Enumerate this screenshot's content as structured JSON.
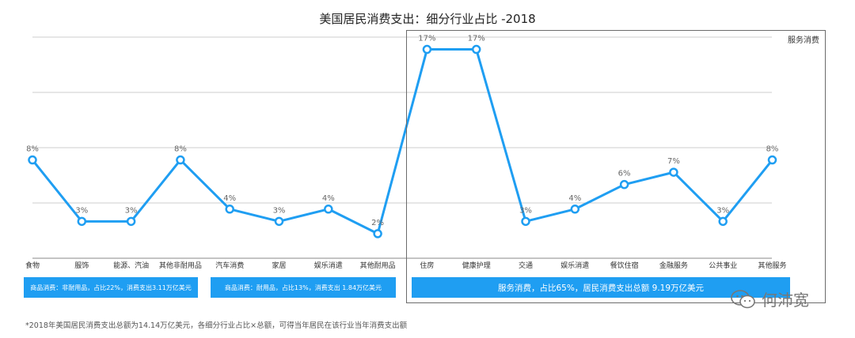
{
  "title": "美国居民消费支出：细分行业占比 -2018",
  "box_label": "服务消费",
  "bands": [
    {
      "label": "商品消费：非耐用品，占比22%，消费支出3.11万亿美元"
    },
    {
      "label": "商品消费：耐用品，占比13%，消费支出 1.84万亿美元"
    },
    {
      "label": "服务消费，占比65%，居民消费支出总额 9.19万亿美元"
    }
  ],
  "footnote": "*2018年美国居民消费支出总额为14.14万亿美元，各细分行业占比×总额，可得当年居民在该行业当年消费支出额",
  "watermark": {
    "text": "何沛宽",
    "icon": "wechat-icon"
  },
  "colors": {
    "line": "#1f9ef2",
    "band": "#1f9ef2",
    "grid": "#cccccc",
    "box": "#6b6b6b"
  },
  "chart_data": {
    "type": "line",
    "title": "美国居民消费支出：细分行业占比 -2018",
    "categories": [
      "食物",
      "服饰",
      "能源、汽油",
      "其他非耐用品",
      "汽车消费",
      "家居",
      "娱乐消遣",
      "其他耐用品",
      "住房",
      "健康护理",
      "交通",
      "娱乐消遣",
      "餐饮住宿",
      "金融服务",
      "公共事业",
      "其他服务"
    ],
    "values": [
      8,
      3,
      3,
      8,
      4,
      3,
      4,
      2,
      17,
      17,
      3,
      4,
      6,
      7,
      3,
      8
    ],
    "value_labels": [
      "8%",
      "3%",
      "3%",
      "8%",
      "4%",
      "3%",
      "4%",
      "2%",
      "17%",
      "17%",
      "3%",
      "4%",
      "6%",
      "7%",
      "3%",
      "8%"
    ],
    "series": [
      {
        "values": [
          8,
          3,
          3,
          8,
          4,
          3,
          4,
          2,
          17,
          17,
          3,
          4,
          6,
          7,
          3,
          8
        ]
      }
    ],
    "xlabel": "",
    "ylabel": "",
    "ylim": [
      0,
      18
    ],
    "grid": true
  }
}
